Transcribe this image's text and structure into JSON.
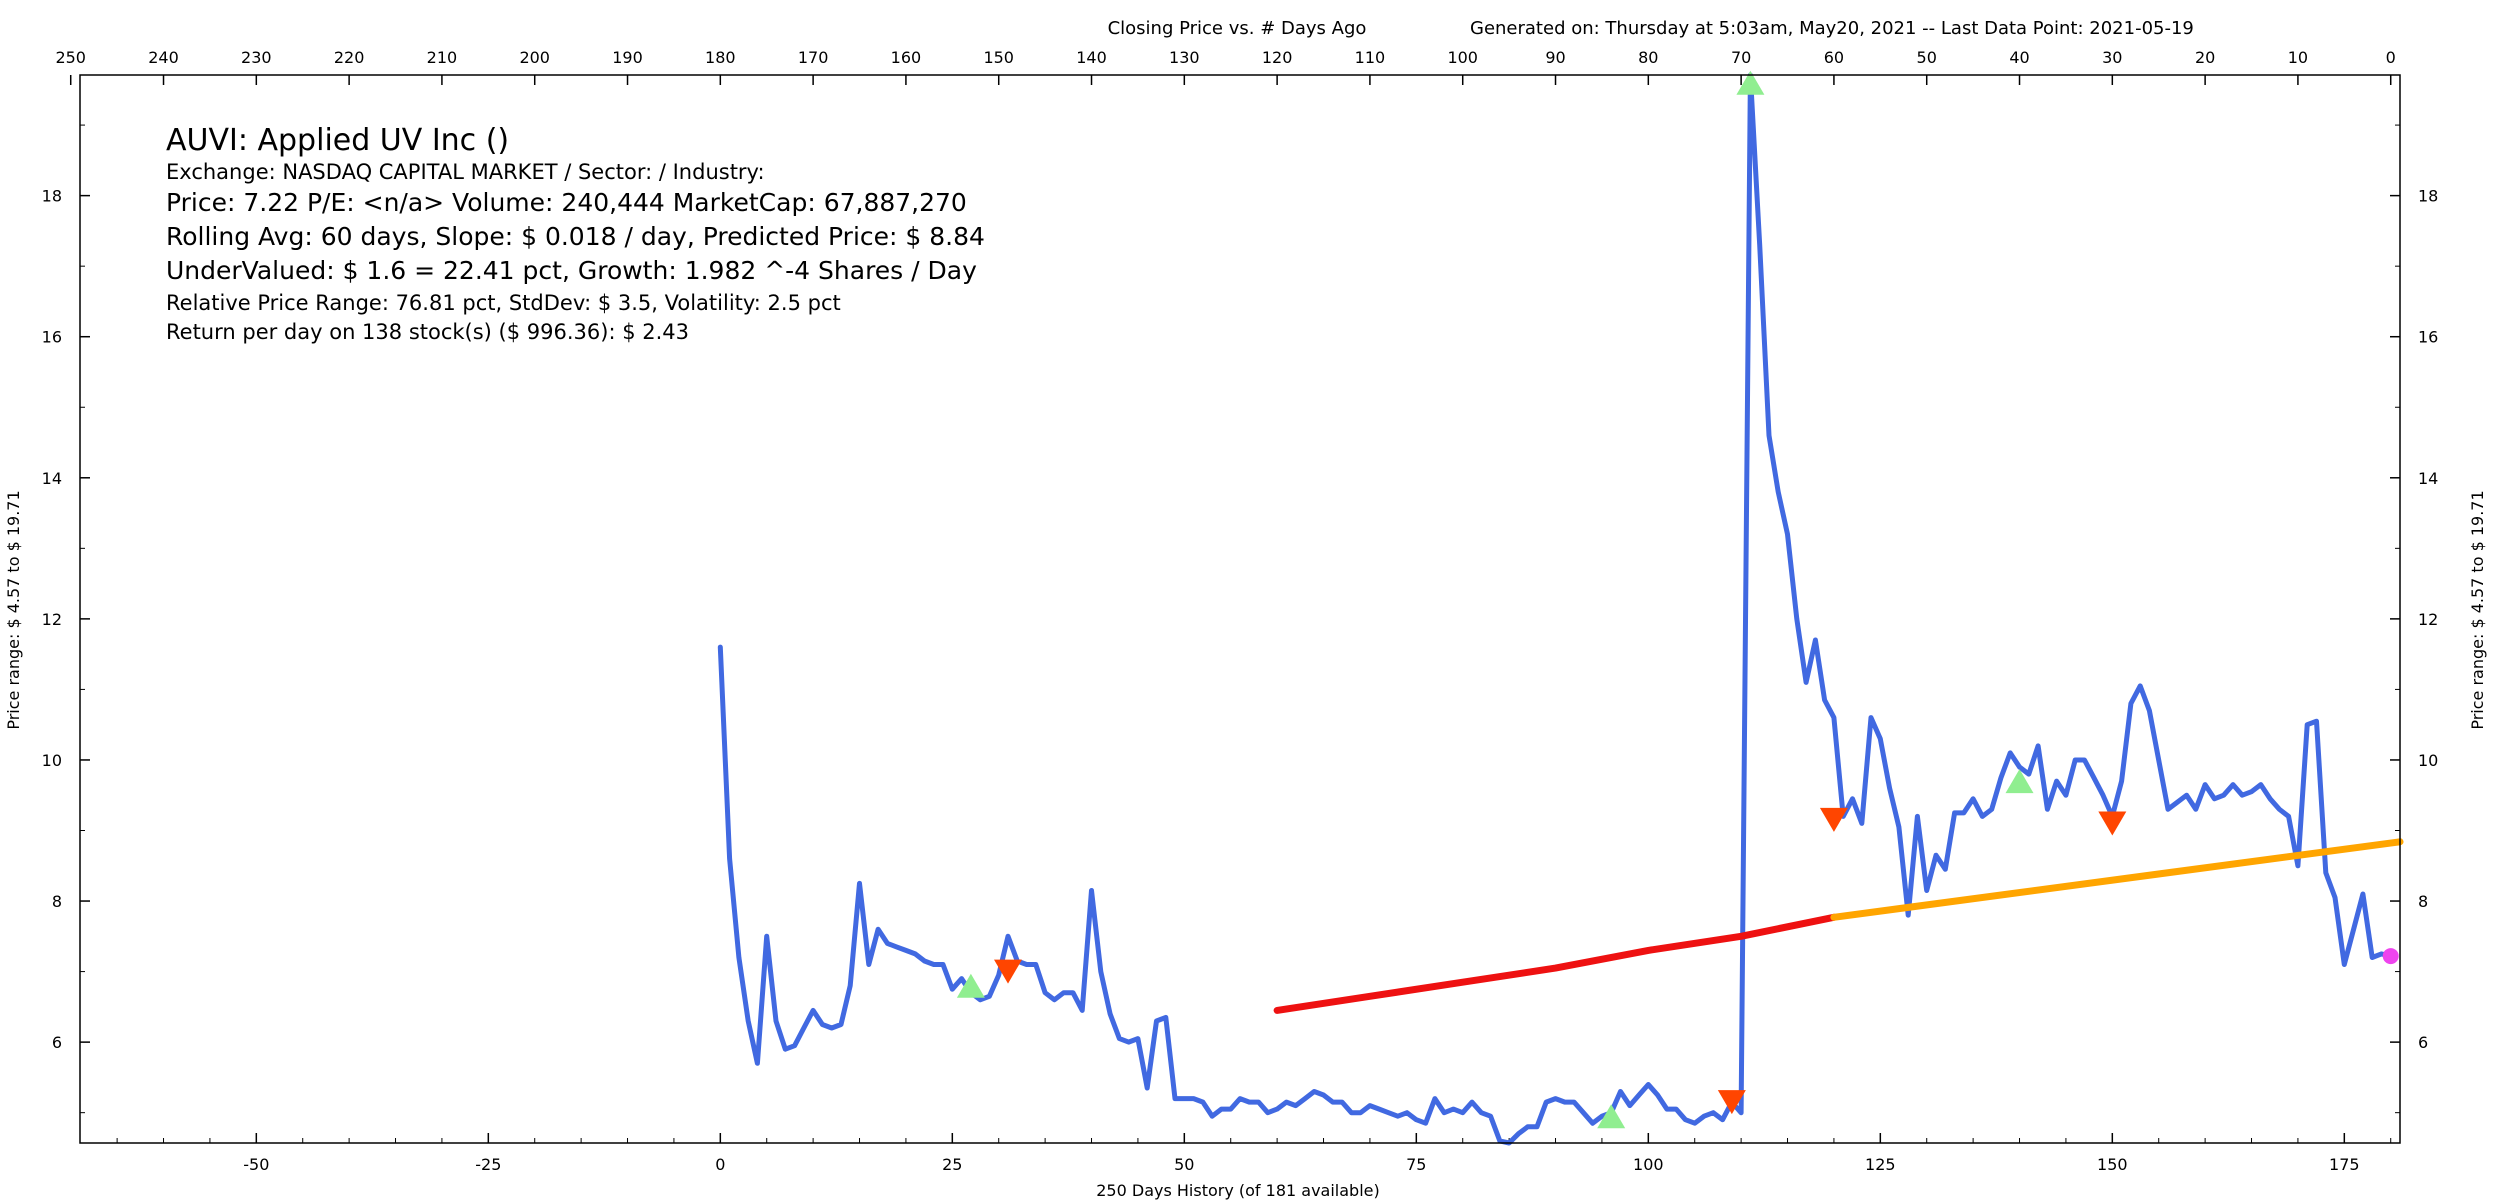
{
  "header": {
    "chart_title": "Closing Price vs. # Days Ago",
    "generated": "Generated on:  Thursday at  5:03am, May20, 2021  --  Last Data Point:  2021-05-19"
  },
  "info": {
    "title": "AUVI:  Applied UV Inc  ()",
    "exchange": "Exchange: NASDAQ CAPITAL MARKET  /  Sector:   /  Industry:",
    "price": "Price: 7.22  P/E: <n/a> Volume: 240,444  MarketCap: 67,887,270",
    "rolling": "Rolling Avg: 60 days, Slope: $ 0.018 / day, Predicted Price: $ 8.84",
    "undervalued": "UnderValued: $ 1.6 = 22.41 pct,  Growth: 1.982 ^-4 Shares / Day",
    "range": "Relative Price Range: 76.81 pct, StdDev: $ 3.5, Volatility: 2.5 pct",
    "return": "Return per day on 138 stock(s) ($ 996.36): $ 2.43"
  },
  "axes": {
    "xlabel_bottom": "250 Days History (of 181 available)",
    "ylabel_left": "Price range:  $ 4.57  to  $ 19.71",
    "ylabel_right": "Price range:  $ 4.57  to  $ 19.71"
  },
  "chart_data": {
    "type": "line",
    "x_bottom_ticks": [
      -50,
      -25,
      0,
      25,
      50,
      75,
      100,
      125,
      150,
      175
    ],
    "x_top_ticks": [
      250,
      240,
      230,
      220,
      210,
      200,
      190,
      180,
      170,
      160,
      150,
      140,
      130,
      120,
      110,
      100,
      90,
      80,
      70,
      60,
      50,
      40,
      30,
      20,
      10,
      0
    ],
    "y_ticks": [
      6,
      8,
      10,
      12,
      14,
      16,
      18
    ],
    "xlim": [
      -69,
      181
    ],
    "ylim": [
      4.57,
      19.71
    ],
    "colors": {
      "price": "#4169e1",
      "rolling_past": "#ee1111",
      "rolling_future": "#ffa500",
      "buy": "#90ee90",
      "sell": "#ff4500",
      "last": "#ee44ee"
    },
    "series": [
      {
        "key": "price",
        "x": [
          0,
          1,
          2,
          3,
          4,
          5,
          6,
          7,
          8,
          9,
          10,
          11,
          12,
          13,
          14,
          15,
          16,
          17,
          18,
          19,
          20,
          21,
          22,
          23,
          24,
          25,
          26,
          27,
          28,
          29,
          30,
          31,
          32,
          33,
          34,
          35,
          36,
          37,
          38,
          39,
          40,
          41,
          42,
          43,
          44,
          45,
          46,
          47,
          48,
          49,
          50,
          51,
          52,
          53,
          54,
          55,
          56,
          57,
          58,
          59,
          60,
          61,
          62,
          63,
          64,
          65,
          66,
          67,
          68,
          69,
          70,
          71,
          72,
          73,
          74,
          75,
          76,
          77,
          78,
          79,
          80,
          81,
          82,
          83,
          84,
          85,
          86,
          87,
          88,
          89,
          90,
          91,
          92,
          93,
          94,
          95,
          96,
          97,
          98,
          99,
          100,
          101,
          102,
          103,
          104,
          105,
          106,
          107,
          108,
          109,
          110,
          111,
          112,
          113,
          114,
          115,
          116,
          117,
          118,
          119,
          120,
          121,
          122,
          123,
          124,
          125,
          126,
          127,
          128,
          129,
          130,
          131,
          132,
          133,
          134,
          135,
          136,
          137,
          138,
          139,
          140,
          141,
          142,
          143,
          144,
          145,
          146,
          147,
          148,
          149,
          150,
          151,
          152,
          153,
          154,
          155,
          156,
          157,
          158,
          159,
          160,
          161,
          162,
          163,
          164,
          165,
          166,
          167,
          168,
          169,
          170,
          171,
          172,
          173,
          174,
          175,
          176,
          177,
          178,
          179,
          180
        ],
        "y": [
          11.6,
          8.6,
          7.2,
          6.3,
          5.7,
          7.5,
          6.3,
          5.9,
          5.95,
          6.2,
          6.45,
          6.25,
          6.2,
          6.25,
          6.8,
          8.25,
          7.1,
          7.6,
          7.4,
          7.35,
          7.3,
          7.25,
          7.15,
          7.1,
          7.1,
          6.75,
          6.9,
          6.7,
          6.6,
          6.65,
          6.95,
          7.5,
          7.15,
          7.1,
          7.1,
          6.7,
          6.6,
          6.7,
          6.7,
          6.45,
          8.15,
          7.0,
          6.4,
          6.05,
          6.0,
          6.05,
          5.35,
          6.3,
          6.35,
          5.2,
          5.2,
          5.2,
          5.15,
          4.95,
          5.05,
          5.05,
          5.2,
          5.15,
          5.15,
          5.0,
          5.05,
          5.15,
          5.1,
          5.2,
          5.3,
          5.25,
          5.15,
          5.15,
          5.0,
          5.0,
          5.1,
          5.05,
          5.0,
          4.95,
          5.0,
          4.9,
          4.85,
          5.2,
          5.0,
          5.05,
          5.0,
          5.15,
          5.0,
          4.95,
          4.6,
          4.57,
          4.7,
          4.8,
          4.8,
          5.15,
          5.2,
          5.15,
          5.15,
          5.0,
          4.85,
          4.95,
          5.0,
          5.3,
          5.1,
          5.25,
          5.4,
          5.25,
          5.05,
          5.05,
          4.9,
          4.85,
          4.95,
          5.0,
          4.9,
          5.15,
          5.0,
          19.71,
          17.3,
          14.6,
          13.8,
          13.2,
          12.0,
          11.1,
          11.7,
          10.85,
          10.6,
          9.2,
          9.45,
          9.1,
          10.6,
          10.3,
          9.6,
          9.05,
          7.8,
          9.2,
          8.15,
          8.65,
          8.45,
          9.25,
          9.25,
          9.45,
          9.2,
          9.3,
          9.75,
          10.1,
          9.9,
          9.8,
          10.2,
          9.3,
          9.7,
          9.5,
          10.0,
          10.0,
          9.75,
          9.5,
          9.2,
          9.7,
          10.8,
          11.05,
          10.7,
          10.0,
          9.3,
          9.4,
          9.5,
          9.3,
          9.65,
          9.45,
          9.5,
          9.65,
          9.5,
          9.55,
          9.65,
          9.45,
          9.3,
          9.2,
          8.5,
          10.5,
          10.55,
          8.4,
          8.05,
          7.1,
          7.6,
          8.1,
          7.2,
          7.25,
          7.22
        ]
      },
      {
        "key": "rolling_past",
        "x": [
          60,
          70,
          80,
          90,
          100,
          110,
          120
        ],
        "y": [
          6.45,
          6.65,
          6.85,
          7.05,
          7.3,
          7.5,
          7.77
        ]
      },
      {
        "key": "rolling_future",
        "x": [
          120,
          181
        ],
        "y": [
          7.77,
          8.84
        ]
      }
    ],
    "markers": [
      {
        "kind": "buy",
        "x": 27,
        "y": 6.8
      },
      {
        "kind": "sell",
        "x": 31,
        "y": 7.0
      },
      {
        "kind": "buy",
        "x": 96,
        "y": 4.95
      },
      {
        "kind": "sell",
        "x": 109,
        "y": 5.15
      },
      {
        "kind": "buy",
        "x": 111,
        "y": 19.6
      },
      {
        "kind": "sell",
        "x": 120,
        "y": 9.15
      },
      {
        "kind": "buy",
        "x": 140,
        "y": 9.7
      },
      {
        "kind": "sell",
        "x": 150,
        "y": 9.1
      },
      {
        "kind": "last",
        "x": 180,
        "y": 7.22
      }
    ]
  }
}
